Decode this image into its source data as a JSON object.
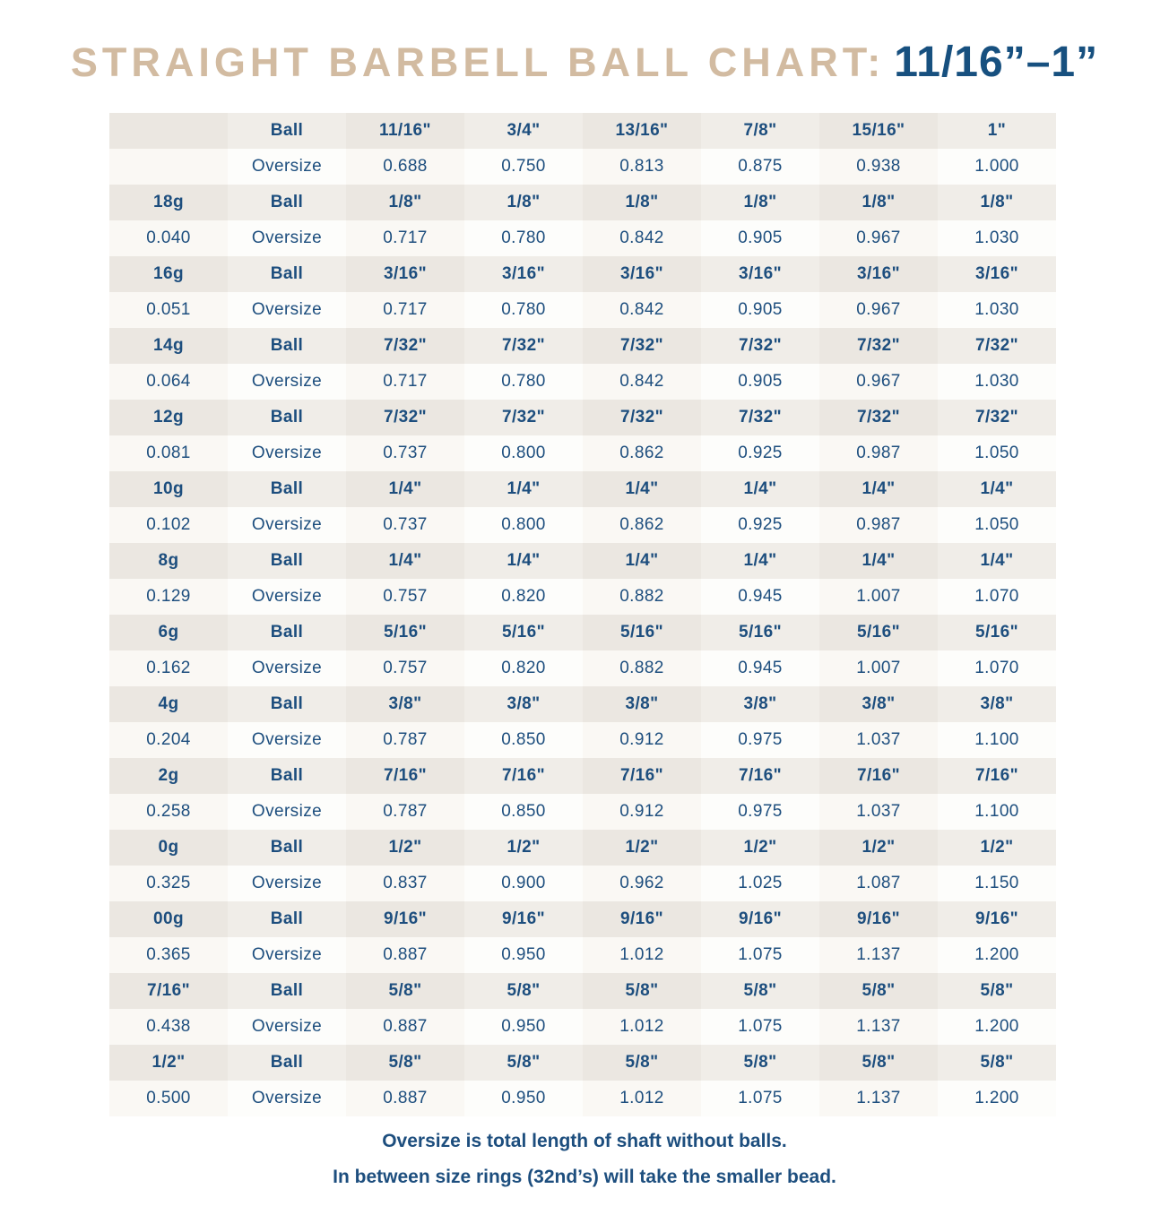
{
  "title": {
    "main": "STRAIGHT BARBELL BALL CHART:",
    "range": "11/16”–1”"
  },
  "chart_data": {
    "type": "table",
    "title": "STRAIGHT BARBELL BALL CHART: 11/16”–1”",
    "header": {
      "gauge": "",
      "label": "Ball",
      "sizes": [
        "11/16\"",
        "3/4\"",
        "13/16\"",
        "7/8\"",
        "15/16\"",
        "1\""
      ]
    },
    "subheader": {
      "gauge": "",
      "label": "Oversize",
      "values": [
        "0.688",
        "0.750",
        "0.813",
        "0.875",
        "0.938",
        "1.000"
      ]
    },
    "row_labels": {
      "ball": "Ball",
      "oversize": "Oversize"
    },
    "gauge_rows": [
      {
        "gauge": "18g",
        "decimal": "0.040",
        "ball_size": "1/8\"",
        "oversize": [
          "0.717",
          "0.780",
          "0.842",
          "0.905",
          "0.967",
          "1.030"
        ]
      },
      {
        "gauge": "16g",
        "decimal": "0.051",
        "ball_size": "3/16\"",
        "oversize": [
          "0.717",
          "0.780",
          "0.842",
          "0.905",
          "0.967",
          "1.030"
        ]
      },
      {
        "gauge": "14g",
        "decimal": "0.064",
        "ball_size": "7/32\"",
        "oversize": [
          "0.717",
          "0.780",
          "0.842",
          "0.905",
          "0.967",
          "1.030"
        ]
      },
      {
        "gauge": "12g",
        "decimal": "0.081",
        "ball_size": "7/32\"",
        "oversize": [
          "0.737",
          "0.800",
          "0.862",
          "0.925",
          "0.987",
          "1.050"
        ]
      },
      {
        "gauge": "10g",
        "decimal": "0.102",
        "ball_size": "1/4\"",
        "oversize": [
          "0.737",
          "0.800",
          "0.862",
          "0.925",
          "0.987",
          "1.050"
        ]
      },
      {
        "gauge": "8g",
        "decimal": "0.129",
        "ball_size": "1/4\"",
        "oversize": [
          "0.757",
          "0.820",
          "0.882",
          "0.945",
          "1.007",
          "1.070"
        ]
      },
      {
        "gauge": "6g",
        "decimal": "0.162",
        "ball_size": "5/16\"",
        "oversize": [
          "0.757",
          "0.820",
          "0.882",
          "0.945",
          "1.007",
          "1.070"
        ]
      },
      {
        "gauge": "4g",
        "decimal": "0.204",
        "ball_size": "3/8\"",
        "oversize": [
          "0.787",
          "0.850",
          "0.912",
          "0.975",
          "1.037",
          "1.100"
        ]
      },
      {
        "gauge": "2g",
        "decimal": "0.258",
        "ball_size": "7/16\"",
        "oversize": [
          "0.787",
          "0.850",
          "0.912",
          "0.975",
          "1.037",
          "1.100"
        ]
      },
      {
        "gauge": "0g",
        "decimal": "0.325",
        "ball_size": "1/2\"",
        "oversize": [
          "0.837",
          "0.900",
          "0.962",
          "1.025",
          "1.087",
          "1.150"
        ]
      },
      {
        "gauge": "00g",
        "decimal": "0.365",
        "ball_size": "9/16\"",
        "oversize": [
          "0.887",
          "0.950",
          "1.012",
          "1.075",
          "1.137",
          "1.200"
        ]
      },
      {
        "gauge": "7/16\"",
        "decimal": "0.438",
        "ball_size": "5/8\"",
        "oversize": [
          "0.887",
          "0.950",
          "1.012",
          "1.075",
          "1.137",
          "1.200"
        ]
      },
      {
        "gauge": "1/2\"",
        "decimal": "0.500",
        "ball_size": "5/8\"",
        "oversize": [
          "0.887",
          "0.950",
          "1.012",
          "1.075",
          "1.137",
          "1.200"
        ]
      }
    ]
  },
  "footer": {
    "line1": "Oversize is total length of shaft without balls.",
    "line2": "In between size rings (32nd’s) will take the smaller bead."
  },
  "colors": {
    "title_tan": "#d2bba1",
    "navy_text": "#1d4e7e",
    "ball_row_bg": "#f0ede8",
    "ball_row_bg_alt": "#ebe7e1",
    "oversize_row_bg": "#fdfdfb",
    "oversize_row_bg_alt": "#faf8f4",
    "page_bg": "#ffffff"
  }
}
